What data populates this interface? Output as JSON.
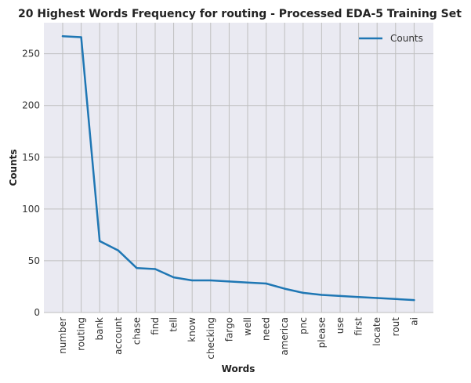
{
  "chart_data": {
    "type": "line",
    "title": "20 Highest Words Frequency for routing - Processed EDA-5 Training Set",
    "xlabel": "Words",
    "ylabel": "Counts",
    "ylim": [
      0,
      280
    ],
    "yticks": [
      0,
      50,
      100,
      150,
      200,
      250
    ],
    "grid": true,
    "legend_position": "top-right",
    "categories": [
      "number",
      "routing",
      "bank",
      "account",
      "chase",
      "find",
      "tell",
      "know",
      "checking",
      "fargo",
      "well",
      "need",
      "america",
      "pnc",
      "please",
      "use",
      "first",
      "locate",
      "rout",
      "ai"
    ],
    "series": [
      {
        "name": "Counts",
        "color": "#1f77b4",
        "values": [
          267,
          266,
          69,
          60,
          43,
          42,
          34,
          31,
          31,
          30,
          29,
          28,
          23,
          19,
          17,
          16,
          15,
          14,
          13,
          12
        ]
      }
    ]
  }
}
